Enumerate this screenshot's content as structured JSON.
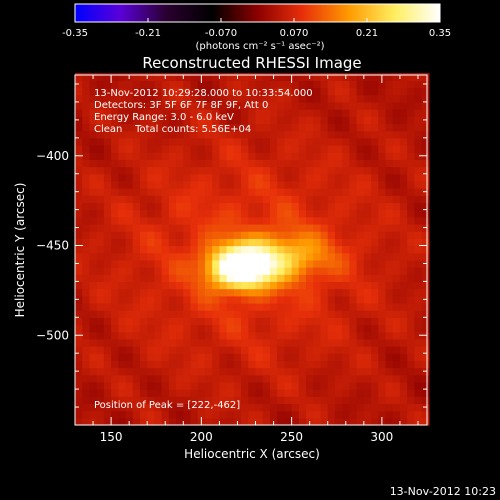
{
  "colorbar": {
    "ticks": [
      "-0.35",
      "-0.21",
      "-0.070",
      "0.070",
      "0.21",
      "0.35"
    ],
    "tick_values": [
      -0.35,
      -0.21,
      -0.07,
      0.07,
      0.21,
      0.35
    ],
    "range": [
      -0.35,
      0.35
    ],
    "unit_label": "(photons cm⁻² s⁻¹ asec⁻²)",
    "colors": [
      "#0000ff",
      "#5a00d8",
      "#2a0030",
      "#000000",
      "#8c0000",
      "#e8300a",
      "#ff9a00",
      "#ffee60",
      "#ffffff"
    ]
  },
  "chart_data": {
    "type": "heatmap",
    "title": "Reconstructed RHESSI Image",
    "xlabel": "Heliocentric X (arcsec)",
    "ylabel": "Heliocentric Y (arcsec)",
    "xlim": [
      130,
      325
    ],
    "ylim": [
      -550,
      -355
    ],
    "x_ticks": [
      150,
      200,
      250,
      300
    ],
    "y_ticks": [
      -400,
      -450,
      -500
    ],
    "peak": {
      "x": 222,
      "y": -462
    },
    "sources": [
      {
        "x": 222,
        "y": -462,
        "sx": 12,
        "sy": 8,
        "amp": 0.35
      },
      {
        "x": 245,
        "y": -456,
        "sx": 18,
        "sy": 9,
        "amp": 0.14
      },
      {
        "x": 225,
        "y": -455,
        "sx": 55,
        "sy": 45,
        "amp": 0.06
      }
    ]
  },
  "info": {
    "line1": "13-Nov-2012 10:29:28.000 to 10:33:54.000",
    "line2": "Detectors: 3F 5F 6F 7F 8F 9F, Att 0",
    "line3": "Energy Range: 3.0 - 6.0 keV",
    "line4": "Clean    Total counts: 5.56E+04",
    "peak_label": "Position of Peak = [222,-462]"
  },
  "footer": "13-Nov-2012 10:23"
}
